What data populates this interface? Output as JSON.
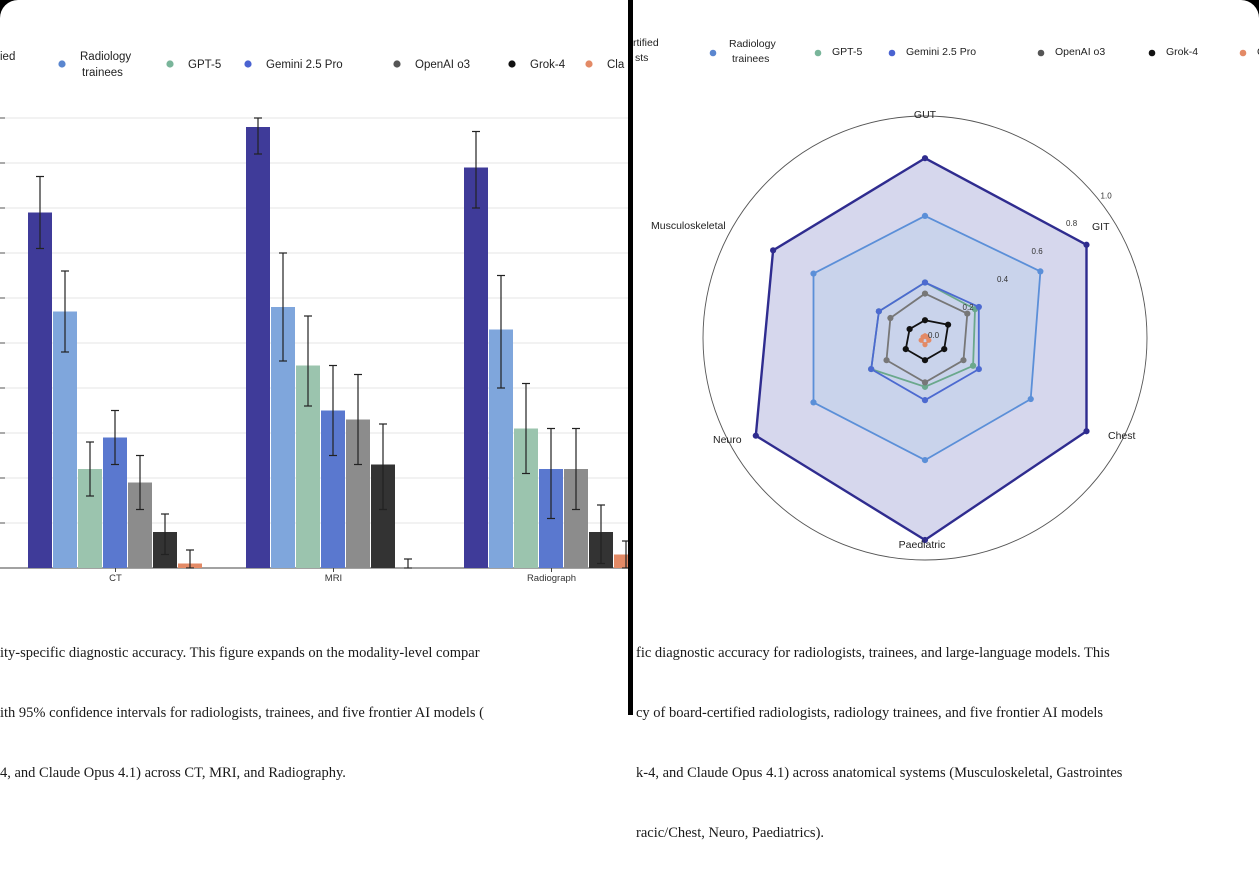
{
  "chart_data": [
    {
      "type": "bar",
      "title": "",
      "xlabel": "",
      "ylabel": "",
      "ylim": [
        0,
        1
      ],
      "grid": true,
      "legend_position": "top",
      "categories": [
        "CT",
        "MRI",
        "Radiograph"
      ],
      "series": [
        {
          "name": "Board-certified radiologists",
          "color": "#3f3b99",
          "values": [
            0.79,
            0.98,
            0.89
          ],
          "ci_low": [
            0.71,
            0.92,
            0.8
          ],
          "ci_high": [
            0.87,
            1.0,
            0.97
          ]
        },
        {
          "name": "Radiology trainees",
          "color": "#7fa6dc",
          "values": [
            0.57,
            0.58,
            0.53
          ],
          "ci_low": [
            0.48,
            0.46,
            0.4
          ],
          "ci_high": [
            0.66,
            0.7,
            0.65
          ]
        },
        {
          "name": "GPT-5",
          "color": "#9bc4ae",
          "values": [
            0.22,
            0.45,
            0.31
          ],
          "ci_low": [
            0.16,
            0.36,
            0.21
          ],
          "ci_high": [
            0.28,
            0.56,
            0.41
          ]
        },
        {
          "name": "Gemini 2.5 Pro",
          "color": "#5a78cf",
          "values": [
            0.29,
            0.35,
            0.22
          ],
          "ci_low": [
            0.23,
            0.25,
            0.11
          ],
          "ci_high": [
            0.35,
            0.45,
            0.31
          ]
        },
        {
          "name": "OpenAI o3",
          "color": "#8c8c8c",
          "values": [
            0.19,
            0.33,
            0.22
          ],
          "ci_low": [
            0.13,
            0.23,
            0.13
          ],
          "ci_high": [
            0.25,
            0.43,
            0.31
          ]
        },
        {
          "name": "Grok-4",
          "color": "#333333",
          "values": [
            0.08,
            0.23,
            0.08
          ],
          "ci_low": [
            0.03,
            0.13,
            0.01
          ],
          "ci_high": [
            0.12,
            0.32,
            0.14
          ]
        },
        {
          "name": "Claude Opus 4.1",
          "color": "#e38a66",
          "values": [
            0.01,
            0.0,
            0.03
          ],
          "ci_low": [
            0.0,
            0.0,
            0.0
          ],
          "ci_high": [
            0.04,
            0.02,
            0.06
          ]
        }
      ],
      "legend_visible": [
        {
          "label": "ied",
          "color": null
        },
        {
          "label": "Radiology trainees",
          "color": "#5a86cf"
        },
        {
          "label": "GPT-5",
          "color": "#79b59a"
        },
        {
          "label": "Gemini 2.5 Pro",
          "color": "#4a63d1"
        },
        {
          "label": "OpenAI o3",
          "color": "#555555"
        },
        {
          "label": "Grok-4",
          "color": "#111111"
        },
        {
          "label": "Cla",
          "color": "#e38a66"
        }
      ],
      "tick_labels": [
        "CT",
        "MRI",
        "Radiograph"
      ]
    },
    {
      "type": "radar",
      "title": "",
      "axes": [
        "GUT",
        "GIT",
        "Chest",
        "Paediatric",
        "Neuro",
        "Musculoskeletal"
      ],
      "rlim": [
        0,
        1.0
      ],
      "r_ticks": [
        "0.0",
        "0.2",
        "0.4",
        "0.6",
        "0.8",
        "1.0"
      ],
      "legend_position": "top",
      "series": [
        {
          "name": "Board-certified radiologists",
          "color": "#2f2c8f",
          "fill": "#cfd0ea",
          "values": [
            0.81,
            0.84,
            0.84,
            0.91,
            0.88,
            0.79
          ]
        },
        {
          "name": "Radiology trainees",
          "color": "#5b8fd8",
          "fill": "#c7d2ea",
          "values": [
            0.55,
            0.6,
            0.55,
            0.55,
            0.58,
            0.58
          ]
        },
        {
          "name": "GPT-5",
          "color": "#6aa88c",
          "fill": null,
          "values": [
            0.25,
            0.26,
            0.25,
            0.22,
            0.28,
            0.24
          ]
        },
        {
          "name": "Gemini 2.5 Pro",
          "color": "#4c6ad0",
          "fill": null,
          "values": [
            0.25,
            0.28,
            0.28,
            0.28,
            0.28,
            0.24
          ]
        },
        {
          "name": "OpenAI o3",
          "color": "#777777",
          "fill": null,
          "values": [
            0.2,
            0.22,
            0.2,
            0.2,
            0.2,
            0.18
          ]
        },
        {
          "name": "Grok-4",
          "color": "#111111",
          "fill": null,
          "values": [
            0.08,
            0.12,
            0.1,
            0.1,
            0.1,
            0.08
          ]
        },
        {
          "name": "Claude Opus 4.1",
          "color": "#e38a66",
          "fill": null,
          "values": [
            0.01,
            0.01,
            0.02,
            0.03,
            0.02,
            0.01
          ]
        }
      ],
      "legend_visible": [
        {
          "label": "rtified",
          "color": null
        },
        {
          "label": "sts",
          "color": null
        },
        {
          "label": "Radiology trainees",
          "color": "#5a86cf"
        },
        {
          "label": "GPT-5",
          "color": "#79b59a"
        },
        {
          "label": "Gemini 2.5 Pro",
          "color": "#4a63d1"
        },
        {
          "label": "OpenAI o3",
          "color": "#555555"
        },
        {
          "label": "Grok-4",
          "color": "#111111"
        },
        {
          "label": "C",
          "color": "#e38a66"
        }
      ]
    }
  ],
  "captions": {
    "left": [
      "ity-specific diagnostic accuracy. This figure expands on the modality-level compar",
      "ith 95% confidence intervals for radiologists, trainees, and five frontier AI models (",
      "4, and Claude Opus 4.1) across CT, MRI, and Radiography."
    ],
    "right": [
      "fic diagnostic accuracy for radiologists, trainees, and large-language models. This",
      "cy of board-certified radiologists, radiology trainees, and five frontier AI models",
      "k-4, and Claude Opus 4.1) across anatomical systems (Musculoskeletal, Gastrointes",
      "racic/Chest, Neuro, Paediatrics)."
    ]
  }
}
